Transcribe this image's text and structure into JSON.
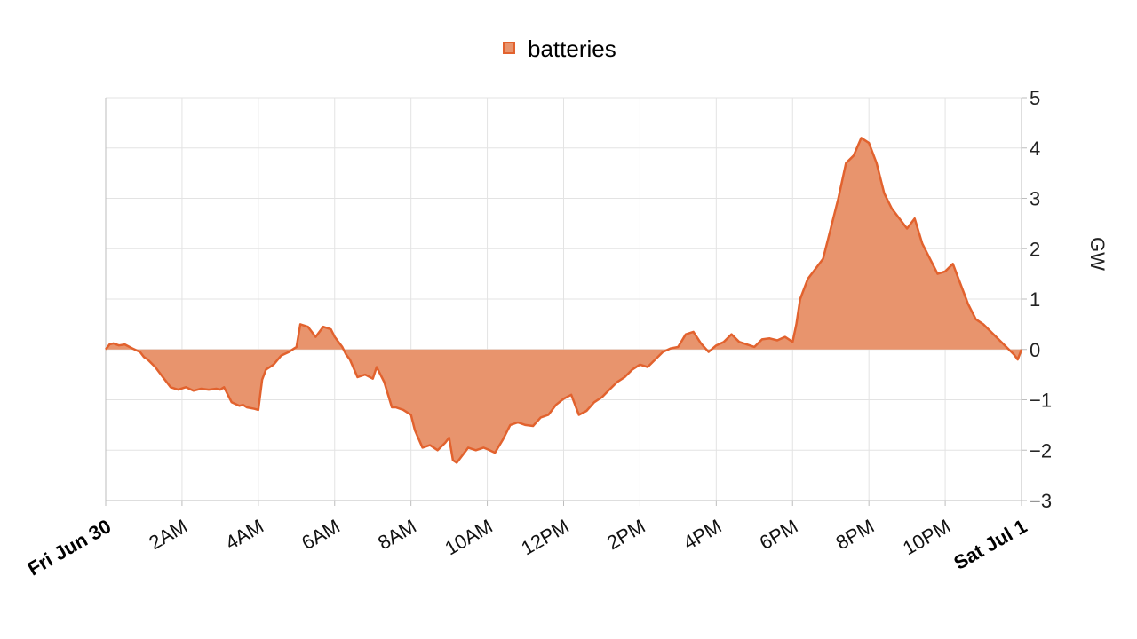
{
  "chart_data": {
    "type": "area",
    "legend": {
      "position": "top-center",
      "entries": [
        {
          "name": "batteries",
          "color": "#E8805A"
        }
      ]
    },
    "series": [
      {
        "name": "batteries",
        "fill": "#E8946D",
        "stroke": "#E2622E",
        "x_hours": [
          0,
          0.1,
          0.2,
          0.35,
          0.5,
          0.7,
          0.9,
          1.0,
          1.1,
          1.3,
          1.5,
          1.7,
          1.9,
          2.1,
          2.3,
          2.5,
          2.7,
          2.9,
          3.0,
          3.1,
          3.3,
          3.5,
          3.6,
          3.7,
          3.9,
          4.0,
          4.1,
          4.2,
          4.4,
          4.6,
          4.8,
          5.0,
          5.1,
          5.3,
          5.5,
          5.7,
          5.9,
          6.0,
          6.1,
          6.2,
          6.3,
          6.4,
          6.6,
          6.8,
          7.0,
          7.1,
          7.3,
          7.5,
          7.6,
          7.8,
          8.0,
          8.1,
          8.3,
          8.5,
          8.7,
          8.9,
          9.0,
          9.1,
          9.2,
          9.3,
          9.5,
          9.7,
          9.9,
          10.0,
          10.2,
          10.4,
          10.6,
          10.8,
          11.0,
          11.2,
          11.4,
          11.6,
          11.8,
          12.0,
          12.2,
          12.4,
          12.6,
          12.8,
          13.0,
          13.2,
          13.4,
          13.6,
          13.8,
          14.0,
          14.2,
          14.4,
          14.6,
          14.8,
          15.0,
          15.2,
          15.4,
          15.6,
          15.8,
          16.0,
          16.2,
          16.4,
          16.6,
          16.8,
          17.0,
          17.2,
          17.4,
          17.6,
          17.8,
          18.0,
          18.1,
          18.2,
          18.4,
          18.6,
          18.8,
          19.0,
          19.2,
          19.4,
          19.6,
          19.8,
          20.0,
          20.2,
          20.4,
          20.6,
          20.8,
          21.0,
          21.2,
          21.4,
          21.6,
          21.8,
          22.0,
          22.2,
          22.4,
          22.6,
          22.8,
          23.0,
          23.2,
          23.4,
          23.6,
          23.8,
          23.9,
          24.0
        ],
        "values": [
          0,
          0.1,
          0.12,
          0.08,
          0.1,
          0.02,
          -0.05,
          -0.15,
          -0.2,
          -0.35,
          -0.55,
          -0.75,
          -0.8,
          -0.75,
          -0.82,
          -0.78,
          -0.8,
          -0.78,
          -0.8,
          -0.75,
          -1.05,
          -1.12,
          -1.1,
          -1.15,
          -1.18,
          -1.2,
          -0.6,
          -0.4,
          -0.3,
          -0.12,
          -0.05,
          0.05,
          0.5,
          0.45,
          0.25,
          0.45,
          0.4,
          0.25,
          0.15,
          0.05,
          -0.1,
          -0.2,
          -0.55,
          -0.5,
          -0.58,
          -0.35,
          -0.65,
          -1.15,
          -1.15,
          -1.2,
          -1.3,
          -1.6,
          -1.95,
          -1.9,
          -2.0,
          -1.85,
          -1.75,
          -2.2,
          -2.25,
          -2.15,
          -1.95,
          -2.0,
          -1.95,
          -1.98,
          -2.05,
          -1.8,
          -1.5,
          -1.45,
          -1.5,
          -1.52,
          -1.35,
          -1.3,
          -1.1,
          -0.98,
          -0.9,
          -1.3,
          -1.22,
          -1.05,
          -0.95,
          -0.8,
          -0.65,
          -0.55,
          -0.4,
          -0.3,
          -0.35,
          -0.2,
          -0.05,
          0.02,
          0.05,
          0.3,
          0.35,
          0.12,
          -0.05,
          0.08,
          0.15,
          0.3,
          0.15,
          0.1,
          0.05,
          0.2,
          0.22,
          0.18,
          0.25,
          0.15,
          0.5,
          1.0,
          1.4,
          1.6,
          1.8,
          2.4,
          3.0,
          3.7,
          3.85,
          4.2,
          4.1,
          3.7,
          3.1,
          2.8,
          2.6,
          2.4,
          2.6,
          2.1,
          1.8,
          1.5,
          1.55,
          1.7,
          1.3,
          0.9,
          0.6,
          0.5,
          0.35,
          0.2,
          0.05,
          -0.1,
          -0.2,
          0
        ]
      }
    ],
    "x_range_hours": [
      0,
      24
    ],
    "y_axis": {
      "label": "GW",
      "position": "right",
      "ylim": [
        -3,
        5
      ],
      "ticks": [
        "5",
        "4",
        "3",
        "2",
        "1",
        "0",
        "−1",
        "−2",
        "−3"
      ]
    },
    "x_ticks": [
      {
        "hour": 0,
        "label": "Fri Jun 30",
        "bold": true
      },
      {
        "hour": 2,
        "label": "2AM",
        "bold": false
      },
      {
        "hour": 4,
        "label": "4AM",
        "bold": false
      },
      {
        "hour": 6,
        "label": "6AM",
        "bold": false
      },
      {
        "hour": 8,
        "label": "8AM",
        "bold": false
      },
      {
        "hour": 10,
        "label": "10AM",
        "bold": false
      },
      {
        "hour": 12,
        "label": "12PM",
        "bold": false
      },
      {
        "hour": 14,
        "label": "2PM",
        "bold": false
      },
      {
        "hour": 16,
        "label": "4PM",
        "bold": false
      },
      {
        "hour": 18,
        "label": "6PM",
        "bold": false
      },
      {
        "hour": 20,
        "label": "8PM",
        "bold": false
      },
      {
        "hour": 22,
        "label": "10PM",
        "bold": false
      },
      {
        "hour": 24,
        "label": "Sat Jul 1",
        "bold": true
      }
    ],
    "grid": true
  }
}
